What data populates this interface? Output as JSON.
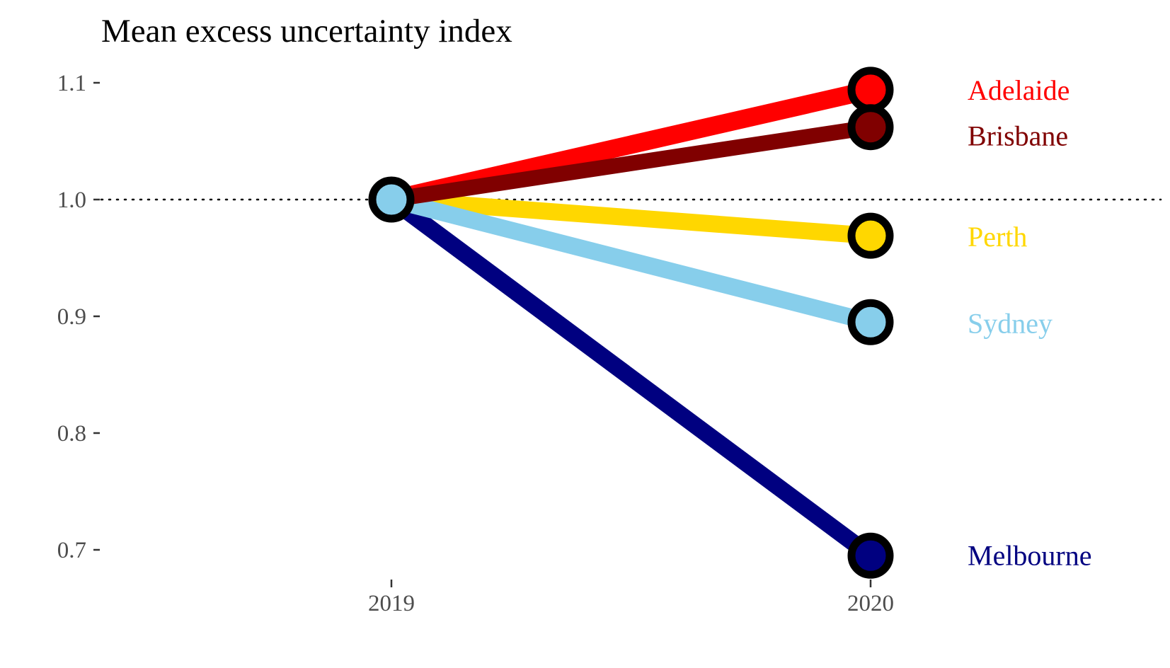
{
  "chart_data": {
    "type": "line",
    "title": "Mean excess uncertainty index",
    "xlabel": "",
    "ylabel": "",
    "x": [
      "2019",
      "2020"
    ],
    "ylim": [
      0.68,
      1.12
    ],
    "y_ticks": [
      "0.7",
      "0.8",
      "0.9",
      "1.0",
      "1.1"
    ],
    "y_tick_values": [
      0.7,
      0.8,
      0.9,
      1.0,
      1.1
    ],
    "reference_line": {
      "y": 1.0,
      "style": "dotted"
    },
    "grid": false,
    "legend": "direct labels at right end of lines",
    "series": [
      {
        "name": "Adelaide",
        "color": "#FF0000",
        "values": [
          1.0,
          1.094
        ]
      },
      {
        "name": "Brisbane",
        "color": "#800000",
        "values": [
          1.0,
          1.062
        ]
      },
      {
        "name": "Perth",
        "color": "#FFD700",
        "values": [
          1.0,
          0.969
        ]
      },
      {
        "name": "Sydney",
        "color": "#87CEEB",
        "values": [
          1.0,
          0.895
        ]
      },
      {
        "name": "Melbourne",
        "color": "#000080",
        "values": [
          1.0,
          0.695
        ]
      }
    ]
  }
}
